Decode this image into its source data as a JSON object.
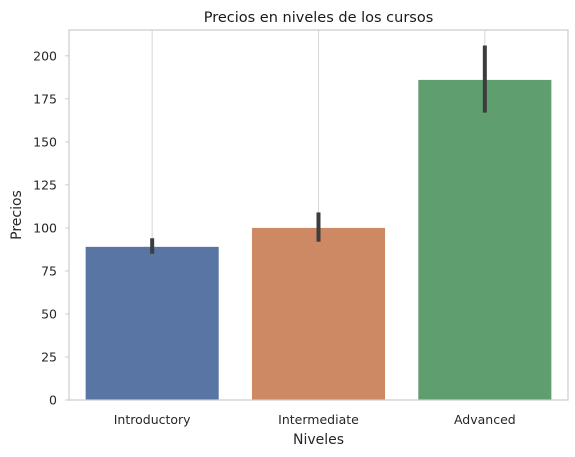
{
  "chart_data": {
    "type": "bar",
    "title": "Precios en niveles de los cursos",
    "xlabel": "Niveles",
    "ylabel": "Precios",
    "categories": [
      "Introductory",
      "Intermediate",
      "Advanced"
    ],
    "values": [
      89,
      100,
      186
    ],
    "error_bars": [
      {
        "low": 85,
        "high": 94
      },
      {
        "low": 92,
        "high": 109
      },
      {
        "low": 167,
        "high": 206
      }
    ],
    "colors": [
      "#5875a4",
      "#cc8963",
      "#5f9e6e"
    ],
    "error_color": "#3d3d3d",
    "ylim": [
      0,
      215
    ],
    "yticks": [
      0,
      25,
      50,
      75,
      100,
      125,
      150,
      175,
      200
    ],
    "grid": "x-only"
  }
}
